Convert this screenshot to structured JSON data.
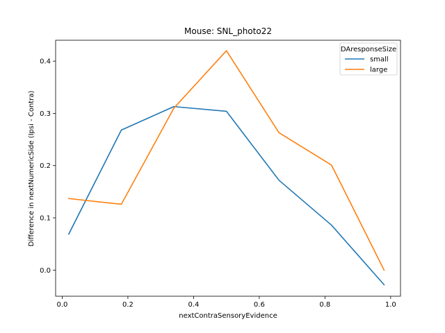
{
  "chart_data": {
    "type": "line",
    "title": "Mouse: SNL_photo22",
    "xlabel": "nextContraSensoryEvidence",
    "ylabel": "Difference in nextNumericSide (Ipsi - Contra)",
    "xlim": [
      -0.02,
      1.03
    ],
    "ylim": [
      -0.05,
      0.44
    ],
    "xticks": [
      0.0,
      0.2,
      0.4,
      0.6,
      0.8,
      1.0
    ],
    "xtick_labels": [
      "0.0",
      "0.2",
      "0.4",
      "0.6",
      "0.8",
      "1.0"
    ],
    "yticks": [
      0.0,
      0.1,
      0.2,
      0.3,
      0.4
    ],
    "ytick_labels": [
      "0.0",
      "0.1",
      "0.2",
      "0.3",
      "0.4"
    ],
    "grid": false,
    "legend": {
      "title": "DAresponseSize",
      "placement": "top-right"
    },
    "x": [
      0.02,
      0.18,
      0.34,
      0.5,
      0.66,
      0.82,
      0.98
    ],
    "series": [
      {
        "name": "small",
        "color": "#1f77b4",
        "values": [
          0.069,
          0.268,
          0.313,
          0.304,
          0.172,
          0.086,
          -0.028
        ]
      },
      {
        "name": "large",
        "color": "#ff7f0e",
        "values": [
          0.137,
          0.126,
          0.31,
          0.42,
          0.263,
          0.201,
          0.0
        ]
      }
    ]
  }
}
